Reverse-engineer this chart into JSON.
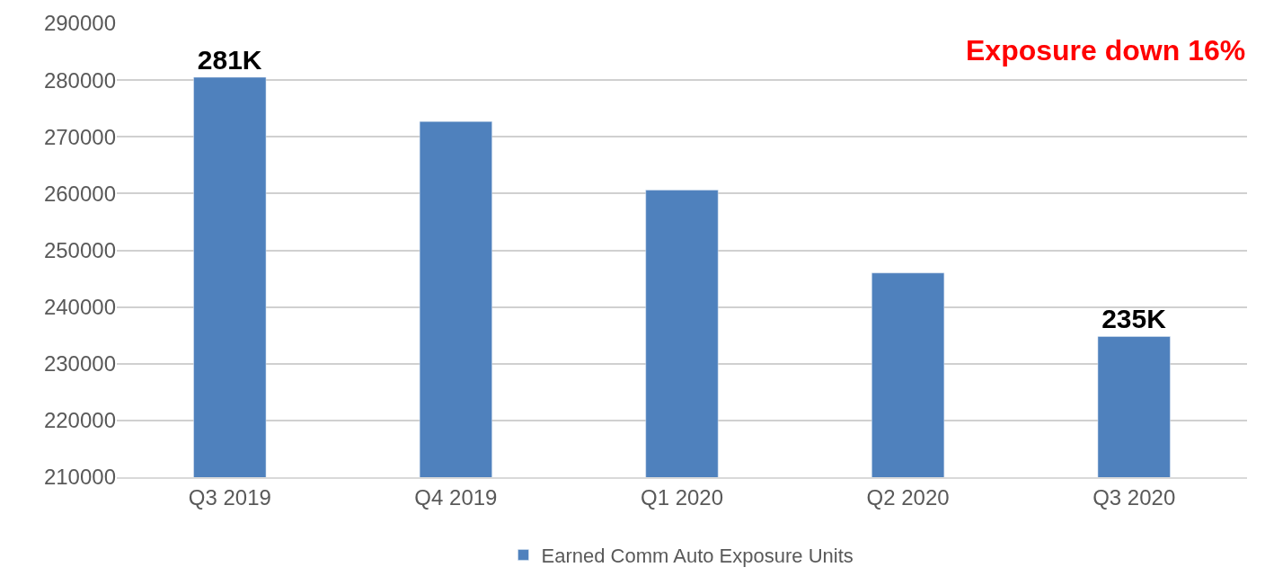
{
  "chart_data": {
    "type": "bar",
    "categories": [
      "Q3 2019",
      "Q4 2019",
      "Q1 2020",
      "Q2 2020",
      "Q3 2020"
    ],
    "series": [
      {
        "name": "Earned Comm Auto Exposure Units",
        "color": "#4f81bd",
        "values": [
          280500,
          272700,
          260600,
          246000,
          234800
        ],
        "value_labels": [
          "281K",
          null,
          null,
          null,
          "235K"
        ]
      }
    ],
    "ylim": [
      210000,
      290000
    ],
    "yticks": [
      210000,
      220000,
      230000,
      240000,
      250000,
      260000,
      270000,
      280000,
      290000
    ],
    "grid": "y",
    "legend": "bottom",
    "annotations": [
      "Exposure down 16%"
    ]
  }
}
